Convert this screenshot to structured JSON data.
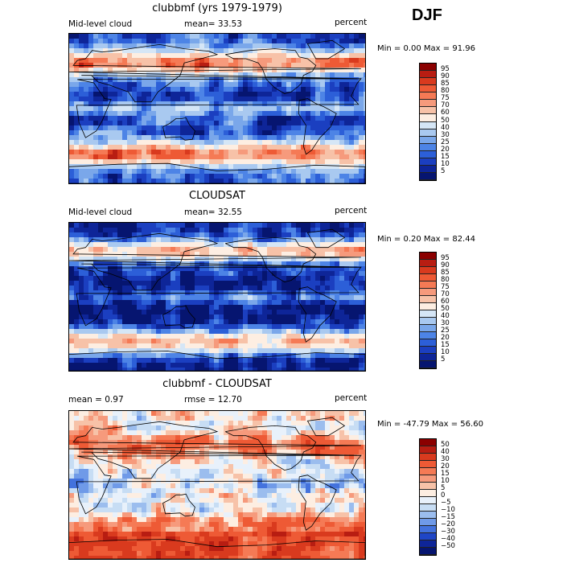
{
  "season": "DJF",
  "panels": [
    {
      "title": "clubbmf (yrs 1979-1979)",
      "left_label": "Mid-level cloud",
      "stat1": "mean=  33.53",
      "units": "percent",
      "min_max": "Min =   0.00 Max =  91.96",
      "colorbar": {
        "labels": [
          "95",
          "90",
          "85",
          "80",
          "75",
          "70",
          "60",
          "50",
          "40",
          "30",
          "25",
          "20",
          "15",
          "10",
          "5"
        ],
        "colors": [
          "#8b0000",
          "#b81d12",
          "#d93a1e",
          "#ee5a35",
          "#f57a55",
          "#f69a7c",
          "#f7c2a8",
          "#fdeee2",
          "#d5e6f6",
          "#a9c9f0",
          "#7aa7ea",
          "#4d84e6",
          "#2c5fd8",
          "#1b3fc0",
          "#0e2598",
          "#061570"
        ]
      },
      "map_style": "model",
      "mean_value": 33.53
    },
    {
      "title": "CLOUDSAT",
      "left_label": "Mid-level cloud",
      "stat1": "mean=  32.55",
      "units": "percent",
      "min_max": "Min =   0.20 Max =  82.44",
      "colorbar": {
        "labels": [
          "95",
          "90",
          "85",
          "80",
          "75",
          "70",
          "60",
          "50",
          "40",
          "30",
          "25",
          "20",
          "15",
          "10",
          "5"
        ],
        "colors": [
          "#8b0000",
          "#b81d12",
          "#d93a1e",
          "#ee5a35",
          "#f57a55",
          "#f69a7c",
          "#f7c2a8",
          "#fdeee2",
          "#d5e6f6",
          "#a9c9f0",
          "#7aa7ea",
          "#4d84e6",
          "#2c5fd8",
          "#1b3fc0",
          "#0e2598",
          "#061570"
        ]
      },
      "map_style": "obs",
      "mean_value": 32.55
    },
    {
      "title": "clubbmf - CLOUDSAT",
      "left_label": "",
      "stat1": "mean =    0.97",
      "stat2": "rmse =   12.70",
      "units": "percent",
      "min_max": "Min = -47.79 Max =  56.60",
      "colorbar": {
        "labels": [
          "50",
          "40",
          "30",
          "20",
          "15",
          "10",
          "5",
          "0",
          "−5",
          "−10",
          "−15",
          "−20",
          "−30",
          "−40",
          "−50"
        ],
        "colors": [
          "#8b0000",
          "#b81d12",
          "#d93a1e",
          "#ee5a35",
          "#f57a55",
          "#f69a7c",
          "#f7c2a8",
          "#fdeee2",
          "#e8f1fb",
          "#c7ddf4",
          "#9bbdee",
          "#6f9ae8",
          "#4372dd",
          "#1f46c6",
          "#0e2598",
          "#061570"
        ]
      },
      "map_style": "diff",
      "mean_value": 0.97,
      "rmse_value": 12.7
    }
  ]
}
